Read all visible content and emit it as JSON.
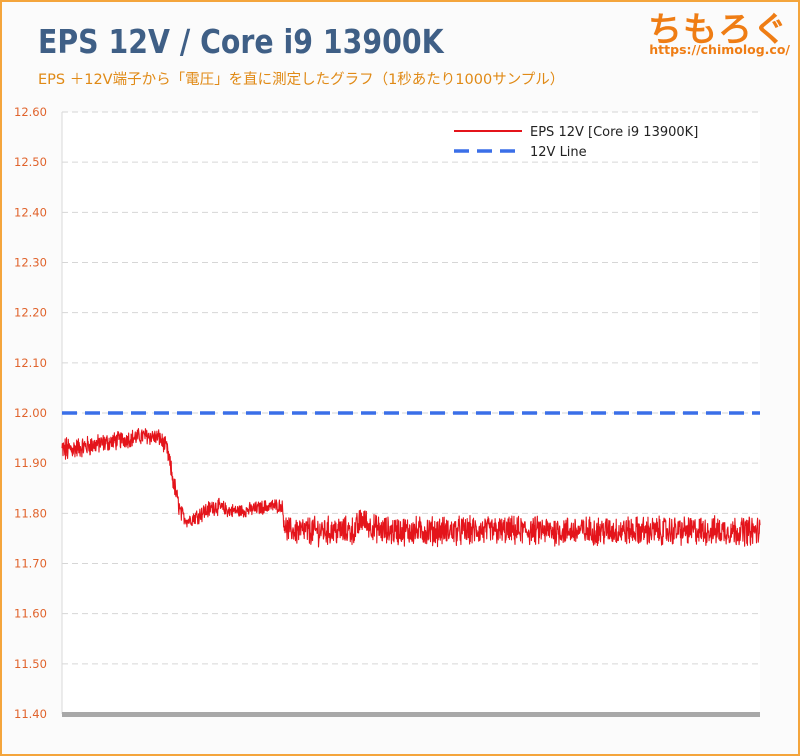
{
  "header": {
    "title": "EPS 12V / Core i9 13900K",
    "subtitle": "EPS ＋12V端子から「電圧」を直に測定したグラフ（1秒あたり1000サンプル）",
    "logo_text": "ちもろぐ",
    "site_url": "https://chimolog.co/"
  },
  "colors": {
    "brand": "#ef7d14",
    "frame": "#f4a53c",
    "title": "#3f5f86",
    "series_voltage": "#e4141b",
    "series_reference": "#3a6fe8",
    "tick_label": "#e0632c"
  },
  "chart_data": {
    "type": "line",
    "title": "EPS 12V / Core i9 13900K",
    "xlabel": "",
    "ylabel": "",
    "ylim": [
      11.4,
      12.6
    ],
    "y_ticks": [
      "12.60",
      "12.50",
      "12.40",
      "12.30",
      "12.20",
      "12.10",
      "12.00",
      "11.90",
      "11.80",
      "11.70",
      "11.60",
      "11.50",
      "11.40"
    ],
    "grid": true,
    "legend_position": "top-right",
    "x_range": [
      0,
      1000
    ],
    "series": [
      {
        "name": "EPS 12V [Core i9 13900K]",
        "style": "solid",
        "color": "#e4141b",
        "x": [
          0,
          20,
          40,
          60,
          80,
          100,
          120,
          140,
          150,
          160,
          170,
          180,
          200,
          220,
          240,
          260,
          280,
          300,
          315,
          320,
          330,
          340,
          360,
          380,
          400,
          420,
          430,
          440,
          460,
          480,
          500,
          520,
          540,
          560,
          580,
          600,
          620,
          640,
          660,
          680,
          700,
          720,
          740,
          760,
          780,
          800,
          820,
          840,
          860,
          880,
          900,
          920,
          940,
          960,
          980,
          1000
        ],
        "values": [
          11.925,
          11.93,
          11.935,
          11.94,
          11.945,
          11.95,
          11.955,
          11.95,
          11.93,
          11.86,
          11.8,
          11.785,
          11.8,
          11.815,
          11.805,
          11.805,
          11.81,
          11.815,
          11.815,
          11.77,
          11.765,
          11.765,
          11.765,
          11.765,
          11.765,
          11.765,
          11.79,
          11.775,
          11.765,
          11.765,
          11.765,
          11.765,
          11.765,
          11.765,
          11.765,
          11.765,
          11.765,
          11.765,
          11.765,
          11.765,
          11.765,
          11.765,
          11.765,
          11.765,
          11.765,
          11.765,
          11.765,
          11.765,
          11.765,
          11.765,
          11.765,
          11.765,
          11.765,
          11.765,
          11.765,
          11.765
        ],
        "noise": [
          0.025,
          0.018,
          0.018,
          0.016,
          0.016,
          0.015,
          0.015,
          0.015,
          0.015,
          0.02,
          0.015,
          0.012,
          0.015,
          0.015,
          0.012,
          0.012,
          0.012,
          0.012,
          0.012,
          0.022,
          0.022,
          0.025,
          0.025,
          0.025,
          0.025,
          0.025,
          0.025,
          0.022,
          0.025,
          0.025,
          0.025,
          0.025,
          0.025,
          0.025,
          0.025,
          0.025,
          0.025,
          0.025,
          0.025,
          0.025,
          0.025,
          0.025,
          0.025,
          0.025,
          0.025,
          0.025,
          0.025,
          0.025,
          0.025,
          0.025,
          0.025,
          0.025,
          0.025,
          0.025,
          0.025,
          0.025
        ]
      },
      {
        "name": "12V Line",
        "style": "dashed",
        "color": "#3a6fe8",
        "x": [
          0,
          1000
        ],
        "values": [
          12.0,
          12.0
        ]
      }
    ]
  }
}
